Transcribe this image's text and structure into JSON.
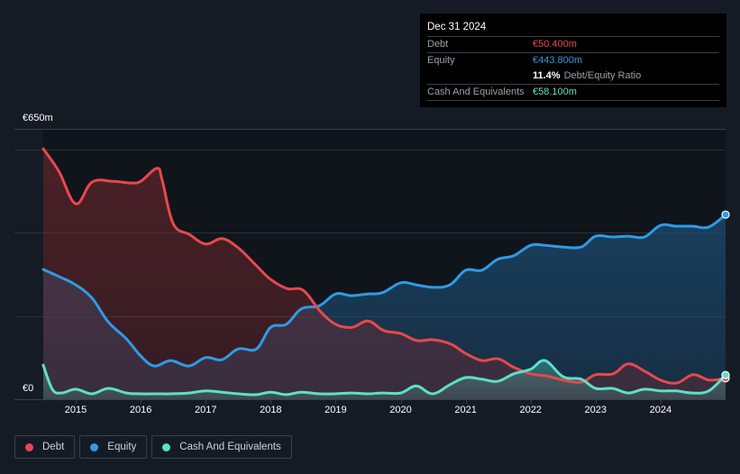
{
  "tooltip": {
    "date": "Dec 31 2024",
    "rows": [
      {
        "label": "Debt",
        "value": "€50.400m",
        "color": "#e8484c"
      },
      {
        "label": "Equity",
        "value": "€443.800m",
        "color": "#2d9be6"
      },
      {
        "label": "",
        "ratio_pct": "11.4%",
        "ratio_label": "Debt/Equity Ratio"
      },
      {
        "label": "Cash And Equivalents",
        "value": "€58.100m",
        "color": "#5ce0c8"
      }
    ]
  },
  "chart_data": {
    "type": "area",
    "title": "",
    "xlabel": "",
    "ylabel": "",
    "ylim": [
      0,
      650
    ],
    "xlim": [
      2014.5,
      2025.0
    ],
    "y_tick_labels": [
      "€650m",
      "€0"
    ],
    "x_tick_labels": [
      "2015",
      "2016",
      "2017",
      "2018",
      "2019",
      "2020",
      "2021",
      "2022",
      "2023",
      "2024"
    ],
    "x_ticks": [
      2015,
      2016,
      2017,
      2018,
      2019,
      2020,
      2021,
      2022,
      2023,
      2024
    ],
    "gridlines": [
      200,
      400,
      600,
      650
    ],
    "grid": true,
    "legend_position": "bottom-left",
    "series": [
      {
        "name": "Debt",
        "color": "#e8484c",
        "x": [
          2014.5,
          2014.74,
          2015.0,
          2015.25,
          2015.57,
          2015.85,
          2016.0,
          2016.25,
          2016.33,
          2016.5,
          2016.75,
          2017.0,
          2017.25,
          2017.5,
          2017.78,
          2018.0,
          2018.25,
          2018.5,
          2018.76,
          2019.0,
          2019.25,
          2019.5,
          2019.74,
          2020.0,
          2020.25,
          2020.5,
          2020.78,
          2021.0,
          2021.25,
          2021.5,
          2021.75,
          2022.0,
          2022.25,
          2022.5,
          2022.78,
          2023.0,
          2023.27,
          2023.5,
          2023.76,
          2024.0,
          2024.25,
          2024.5,
          2024.75,
          2025.0
        ],
        "values": [
          602,
          548,
          470,
          522,
          524,
          520,
          524,
          555,
          527,
          422,
          396,
          373,
          386,
          364,
          321,
          288,
          266,
          262,
          212,
          180,
          173,
          188,
          165,
          158,
          141,
          143,
          132,
          110,
          93,
          97,
          76,
          61,
          56,
          46,
          41,
          59,
          61,
          85,
          67,
          46,
          39,
          59,
          46,
          50.4
        ]
      },
      {
        "name": "Equity",
        "color": "#2d9be6",
        "x": [
          2014.5,
          2014.74,
          2015.0,
          2015.25,
          2015.5,
          2015.78,
          2016.0,
          2016.21,
          2016.46,
          2016.74,
          2017.0,
          2017.25,
          2017.5,
          2017.78,
          2018.0,
          2018.24,
          2018.47,
          2018.75,
          2019.0,
          2019.24,
          2019.49,
          2019.72,
          2020.0,
          2020.24,
          2020.49,
          2020.76,
          2021.0,
          2021.25,
          2021.49,
          2021.74,
          2022.0,
          2022.22,
          2022.5,
          2022.78,
          2023.0,
          2023.26,
          2023.5,
          2023.75,
          2024.0,
          2024.24,
          2024.49,
          2024.74,
          2025.0
        ],
        "values": [
          312,
          295,
          275,
          243,
          186,
          145,
          104,
          80,
          93,
          80,
          100,
          95,
          121,
          121,
          173,
          180,
          217,
          225,
          253,
          249,
          253,
          256,
          280,
          275,
          269,
          275,
          310,
          310,
          336,
          345,
          370,
          370,
          366,
          366,
          392,
          390,
          392,
          390,
          418,
          416,
          416,
          414,
          443.8
        ]
      },
      {
        "name": "Cash And Equivalents",
        "color": "#5ce0c8",
        "x": [
          2014.5,
          2014.64,
          2014.78,
          2015.0,
          2015.25,
          2015.5,
          2015.78,
          2016.0,
          2016.25,
          2016.46,
          2016.74,
          2017.0,
          2017.25,
          2017.5,
          2017.78,
          2018.0,
          2018.24,
          2018.47,
          2018.75,
          2019.0,
          2019.24,
          2019.49,
          2019.72,
          2020.0,
          2020.24,
          2020.49,
          2020.76,
          2021.0,
          2021.25,
          2021.49,
          2021.74,
          2022.0,
          2022.22,
          2022.5,
          2022.78,
          2023.0,
          2023.26,
          2023.5,
          2023.75,
          2024.0,
          2024.24,
          2024.49,
          2024.74,
          2025.0
        ],
        "values": [
          82,
          24,
          15,
          24,
          13,
          26,
          15,
          13,
          13,
          13,
          15,
          20,
          17,
          13,
          11,
          17,
          11,
          17,
          13,
          13,
          15,
          13,
          15,
          15,
          32,
          13,
          35,
          52,
          48,
          43,
          61,
          72,
          93,
          54,
          48,
          26,
          26,
          15,
          24,
          20,
          20,
          15,
          20,
          58.1
        ]
      }
    ]
  },
  "legend": [
    {
      "label": "Debt",
      "color": "#e8484c"
    },
    {
      "label": "Equity",
      "color": "#2d9be6"
    },
    {
      "label": "Cash And Equivalents",
      "color": "#5ce0c8"
    }
  ]
}
